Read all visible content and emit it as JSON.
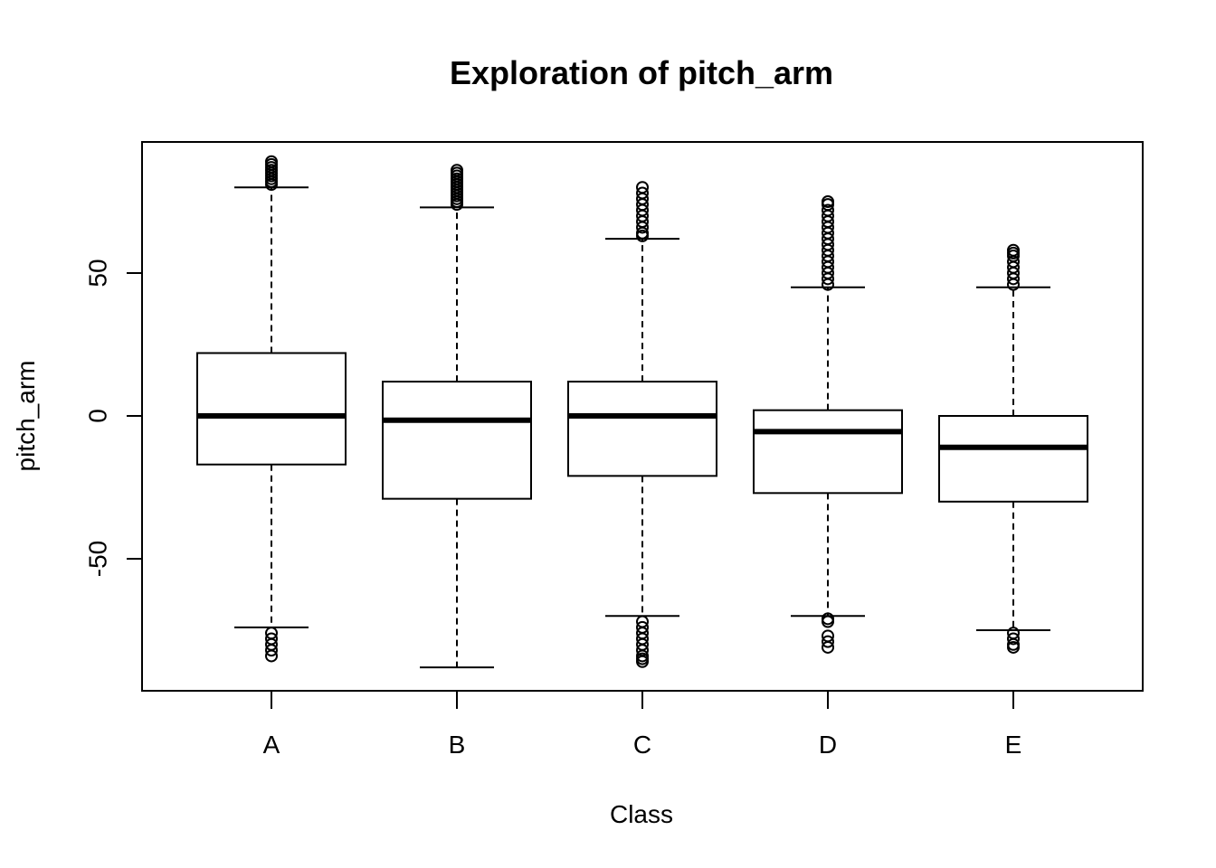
{
  "chart_data": {
    "type": "boxplot",
    "title": "Exploration of  pitch_arm",
    "xlabel": "Class",
    "ylabel": "pitch_arm",
    "ylim": [
      -95,
      96
    ],
    "yticks": [
      -50,
      0,
      50
    ],
    "categories": [
      "A",
      "B",
      "C",
      "D",
      "E"
    ],
    "grid": false,
    "legend": "none",
    "boxes": [
      {
        "category": "A",
        "whisker_low": -74,
        "q1": -17,
        "median": 0,
        "q3": 22,
        "whisker_high": 80,
        "outliers": [
          -76,
          -78,
          -80,
          -82,
          -84,
          81,
          82,
          83,
          84,
          85,
          86,
          87,
          88,
          89
        ]
      },
      {
        "category": "B",
        "whisker_low": -88,
        "q1": -29,
        "median": -1.5,
        "q3": 12,
        "whisker_high": 73,
        "outliers": [
          74,
          75,
          76,
          77,
          78,
          79,
          80,
          81,
          82,
          83,
          84,
          85,
          86
        ]
      },
      {
        "category": "C",
        "whisker_low": -70,
        "q1": -21,
        "median": 0,
        "q3": 12,
        "whisker_high": 62,
        "outliers": [
          -72,
          -74,
          -76,
          -78,
          -80,
          -82,
          -84,
          -85,
          -86,
          63,
          64,
          66,
          68,
          70,
          72,
          74,
          76,
          78,
          80
        ]
      },
      {
        "category": "D",
        "whisker_low": -70,
        "q1": -27,
        "median": -5.5,
        "q3": 2,
        "whisker_high": 45,
        "outliers": [
          -71,
          -72,
          -77,
          -79,
          -81,
          46,
          48,
          50,
          52,
          54,
          56,
          58,
          60,
          62,
          64,
          66,
          68,
          70,
          72,
          74,
          75
        ]
      },
      {
        "category": "E",
        "whisker_low": -75,
        "q1": -30,
        "median": -11,
        "q3": 0,
        "whisker_high": 45,
        "outliers": [
          -76,
          -78,
          -80,
          -81,
          46,
          48,
          50,
          52,
          54,
          56,
          57,
          58
        ]
      }
    ]
  }
}
